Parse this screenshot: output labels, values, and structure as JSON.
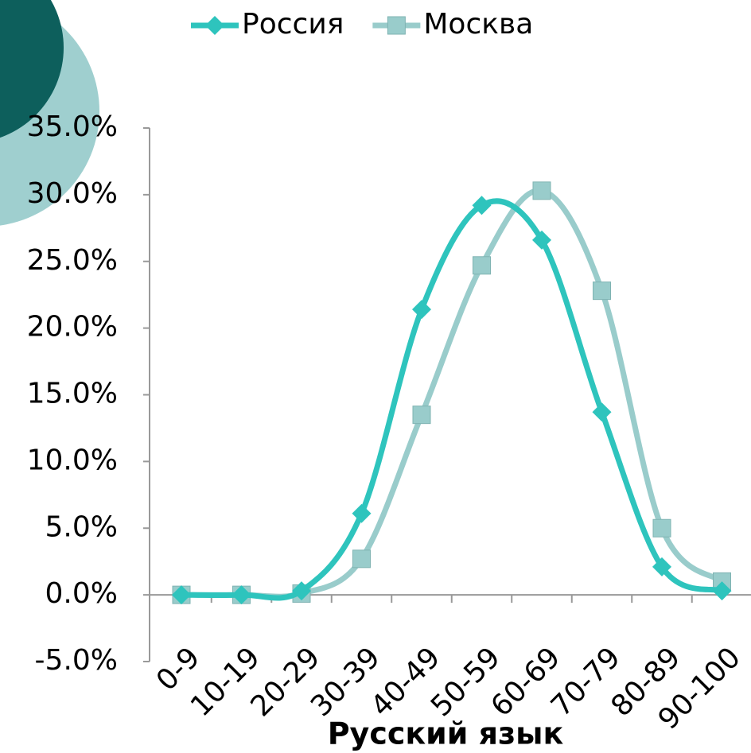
{
  "chart_data": {
    "type": "line",
    "x_label": "Русский язык",
    "categories": [
      "0-9",
      "10-19",
      "20-29",
      "30-39",
      "40-49",
      "50-59",
      "60-69",
      "70-79",
      "80-89",
      "90-100"
    ],
    "series": [
      {
        "name": "Россия",
        "color": "#2ec4bd",
        "marker": "diamond",
        "values": [
          0,
          0,
          0.3,
          6.1,
          21.4,
          29.2,
          26.6,
          13.7,
          2.1,
          0.3
        ]
      },
      {
        "name": "Москва",
        "color": "#99cccb",
        "marker": "square",
        "values": [
          0,
          0,
          0.1,
          2.7,
          13.5,
          24.7,
          30.3,
          22.8,
          5.0,
          1.0
        ]
      }
    ],
    "ylim": [
      -5,
      35
    ],
    "yticks": [
      {
        "value": -5,
        "label": "-5.0%"
      },
      {
        "value": 0,
        "label": "0.0%"
      },
      {
        "value": 5,
        "label": "5.0%"
      },
      {
        "value": 10,
        "label": "10.0%"
      },
      {
        "value": 15,
        "label": "15.0%"
      },
      {
        "value": 20,
        "label": "20.0%"
      },
      {
        "value": 25,
        "label": "25.0%"
      },
      {
        "value": 30,
        "label": "30.0%"
      },
      {
        "value": 35,
        "label": "35.0%"
      }
    ],
    "smooth": true,
    "legend": "top"
  }
}
